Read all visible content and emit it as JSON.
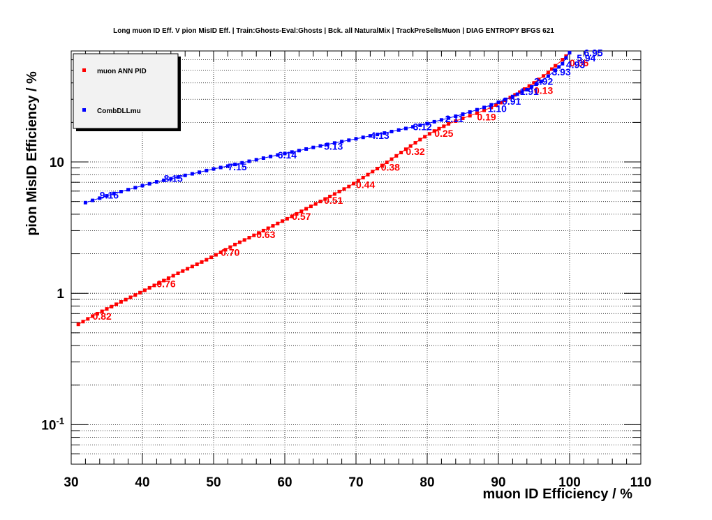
{
  "chart_data": {
    "type": "line",
    "title": "Long muon ID Eff. V pion MisID Eff. | Train:Ghosts-Eval:Ghosts | Bck. all NaturalMix | TrackPreSelIsMuon | DIAG ENTROPY BFGS 621",
    "xlabel": "muon ID Efficiency / %",
    "ylabel": "pion MisID Efficiency / %",
    "xlim": [
      30,
      110
    ],
    "ylim": [
      0.05,
      70
    ],
    "y_scale": "log",
    "grid": true,
    "legend_position": "top-left",
    "x_ticks": [
      "30",
      "40",
      "50",
      "60",
      "70",
      "80",
      "90",
      "100",
      "110"
    ],
    "y_ticks": [
      {
        "base": "10",
        "exp": "-1",
        "value": 0.1
      },
      {
        "base": "1",
        "exp": "",
        "value": 1
      },
      {
        "base": "10",
        "exp": "",
        "value": 10
      }
    ],
    "series": [
      {
        "name": "muon ANN PID",
        "color": "#ff0000",
        "x": [
          31,
          33,
          35,
          37,
          39,
          41,
          43,
          45,
          47,
          49,
          51,
          53,
          55,
          57,
          59,
          61,
          63,
          65,
          67,
          69,
          71,
          73,
          75,
          77,
          79,
          81,
          83,
          85,
          87,
          89,
          91,
          93,
          95,
          97,
          98,
          99,
          99.5,
          100
        ],
        "y": [
          0.58,
          0.67,
          0.76,
          0.86,
          0.97,
          1.1,
          1.25,
          1.42,
          1.6,
          1.8,
          2.05,
          2.35,
          2.65,
          3.0,
          3.4,
          3.85,
          4.4,
          5.0,
          5.7,
          6.5,
          7.6,
          8.9,
          10.5,
          12.5,
          14.8,
          17.2,
          19.5,
          21.5,
          23.5,
          26.0,
          29.5,
          34.0,
          40.0,
          48.0,
          54.0,
          60.0,
          64.0,
          68.0
        ],
        "labels": [
          {
            "text": "0.82",
            "x": 33,
            "y": 0.67
          },
          {
            "text": "0.76",
            "x": 42,
            "y": 1.18
          },
          {
            "text": "0.70",
            "x": 51,
            "y": 2.05
          },
          {
            "text": "0.63",
            "x": 56,
            "y": 2.8
          },
          {
            "text": "0.57",
            "x": 61,
            "y": 3.85
          },
          {
            "text": "0.51",
            "x": 65.5,
            "y": 5.1
          },
          {
            "text": "0.44",
            "x": 70,
            "y": 6.7
          },
          {
            "text": "0.38",
            "x": 73.5,
            "y": 9.1
          },
          {
            "text": "0.32",
            "x": 77,
            "y": 12.0
          },
          {
            "text": "0.25",
            "x": 81,
            "y": 16.5
          },
          {
            "text": "0.19",
            "x": 87,
            "y": 22.0
          },
          {
            "text": "0.13",
            "x": 95,
            "y": 35.0
          },
          {
            "text": "0.06",
            "x": 100,
            "y": 57.0
          }
        ]
      },
      {
        "name": "CombDLLmu",
        "color": "#0000ff",
        "x": [
          32,
          34,
          36,
          38,
          40,
          42,
          44,
          46,
          48,
          50,
          52,
          54,
          56,
          58,
          60,
          62,
          64,
          66,
          68,
          70,
          72,
          74,
          76,
          78,
          80,
          82,
          84,
          86,
          88,
          90,
          92,
          94,
          96,
          97,
          98,
          99,
          99.5,
          100
        ],
        "y": [
          4.9,
          5.3,
          5.75,
          6.15,
          6.6,
          7.05,
          7.45,
          7.9,
          8.35,
          8.85,
          9.3,
          9.85,
          10.4,
          11.0,
          11.6,
          12.2,
          12.9,
          13.6,
          14.3,
          15.0,
          15.8,
          16.6,
          17.5,
          18.5,
          19.6,
          20.9,
          22.3,
          24.0,
          26.0,
          28.5,
          31.5,
          35.5,
          41.0,
          45.0,
          50.0,
          56.0,
          62.0,
          68.0
        ],
        "labels": [
          {
            "text": "9.16",
            "x": 34,
            "y": 5.6
          },
          {
            "text": "8.15",
            "x": 43,
            "y": 7.5
          },
          {
            "text": "7.15",
            "x": 52,
            "y": 9.2
          },
          {
            "text": "6.14",
            "x": 59,
            "y": 11.3
          },
          {
            "text": "5.13",
            "x": 65.5,
            "y": 13.2
          },
          {
            "text": "4.13",
            "x": 72,
            "y": 15.9
          },
          {
            "text": "3.12",
            "x": 78,
            "y": 18.6
          },
          {
            "text": "2.11",
            "x": 82.5,
            "y": 21.3
          },
          {
            "text": "1.10",
            "x": 88.5,
            "y": 25.5
          },
          {
            "text": "0.91",
            "x": 90.5,
            "y": 29.0
          },
          {
            "text": "1.91",
            "x": 93,
            "y": 34.5
          },
          {
            "text": "2.92",
            "x": 95,
            "y": 41.0
          },
          {
            "text": "3.93",
            "x": 97.5,
            "y": 48.5
          },
          {
            "text": "4.93",
            "x": 99.5,
            "y": 55.0
          },
          {
            "text": "5.94",
            "x": 101,
            "y": 62.0
          },
          {
            "text": "6.95",
            "x": 102,
            "y": 68.0
          }
        ]
      }
    ]
  }
}
